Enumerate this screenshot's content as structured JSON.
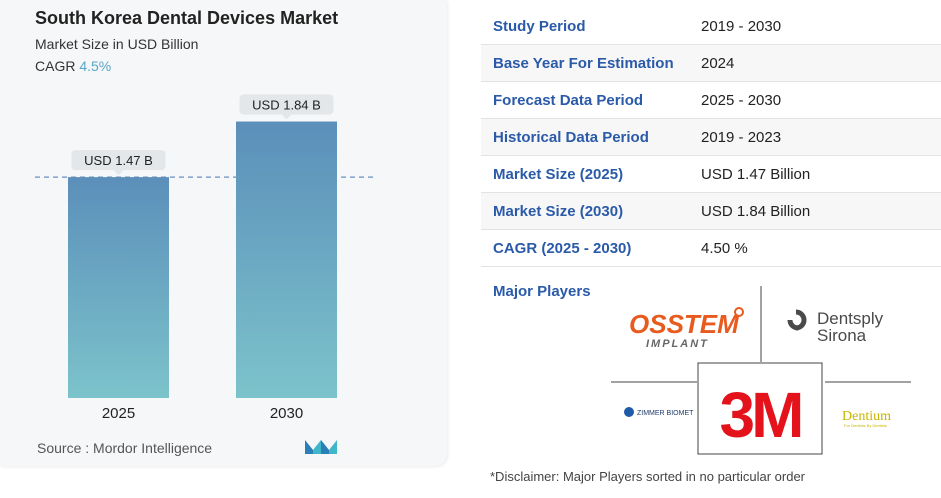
{
  "header": {
    "title": "South Korea Dental Devices Market",
    "subtitle": "Market Size in USD Billion",
    "cagr_label": "CAGR",
    "cagr_value": "4.5%"
  },
  "chart_data": {
    "type": "bar",
    "categories": [
      "2025",
      "2030"
    ],
    "values": [
      1.47,
      1.84
    ],
    "data_labels": [
      "USD 1.47 B",
      "USD 1.84 B"
    ],
    "ylim": [
      0,
      1.95
    ],
    "reference_line": 1.47,
    "colors": {
      "bar_top": "#5b8fba",
      "bar_bottom": "#7cc3cb",
      "dashed_line": "#6b8fbf",
      "label_bg": "#e3e7ea"
    }
  },
  "source": "Source :  Mordor Intelligence",
  "table": [
    {
      "key": "Study Period",
      "value": "2019 - 2030"
    },
    {
      "key": "Base Year For Estimation",
      "value": "2024"
    },
    {
      "key": "Forecast Data Period",
      "value": "2025 - 2030"
    },
    {
      "key": "Historical Data Period",
      "value": "2019 - 2023"
    },
    {
      "key": "Market Size (2025)",
      "value": "USD 1.47 Billion"
    },
    {
      "key": "Market Size (2030)",
      "value": "USD 1.84 Billion"
    },
    {
      "key": "CAGR (2025 - 2030)",
      "value": "4.50 %"
    }
  ],
  "major_players_label": "Major Players",
  "players": {
    "osstem": "OSSTEM",
    "osstem_sub": "IMPLANT",
    "dentsply_1": "Dentsply",
    "dentsply_2": "Sirona",
    "zimmer": "ZIMMER BIOMET",
    "threem": "3M",
    "dentium": "Dentium",
    "dentium_sub": "For Dentists By Dentists"
  },
  "disclaimer": "*Disclaimer: Major Players sorted in no particular order"
}
